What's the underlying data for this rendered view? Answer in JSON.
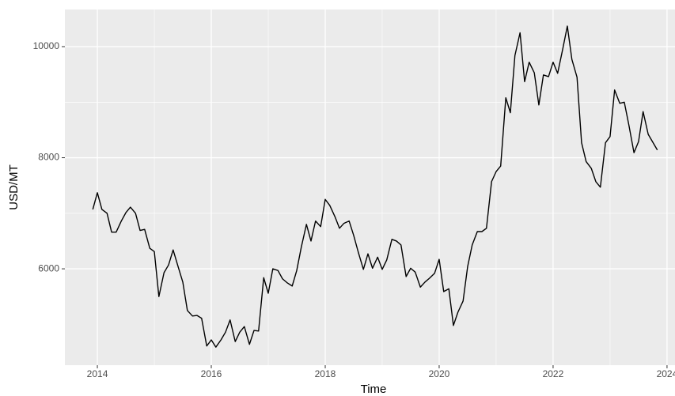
{
  "chart_data": {
    "type": "line",
    "x_label": "Time",
    "y_label": "USD/MT",
    "x": [
      2013.92,
      2014.0,
      2014.08,
      2014.17,
      2014.25,
      2014.33,
      2014.42,
      2014.5,
      2014.58,
      2014.67,
      2014.75,
      2014.83,
      2014.92,
      2015.0,
      2015.08,
      2015.17,
      2015.25,
      2015.33,
      2015.42,
      2015.5,
      2015.58,
      2015.67,
      2015.75,
      2015.83,
      2015.92,
      2016.0,
      2016.08,
      2016.17,
      2016.25,
      2016.33,
      2016.42,
      2016.5,
      2016.58,
      2016.67,
      2016.75,
      2016.83,
      2016.92,
      2017.0,
      2017.08,
      2017.17,
      2017.25,
      2017.33,
      2017.42,
      2017.5,
      2017.58,
      2017.67,
      2017.75,
      2017.83,
      2017.92,
      2018.0,
      2018.08,
      2018.17,
      2018.25,
      2018.33,
      2018.42,
      2018.5,
      2018.58,
      2018.67,
      2018.75,
      2018.83,
      2018.92,
      2019.0,
      2019.08,
      2019.17,
      2019.25,
      2019.33,
      2019.42,
      2019.5,
      2019.58,
      2019.67,
      2019.75,
      2019.83,
      2019.92,
      2020.0,
      2020.08,
      2020.17,
      2020.25,
      2020.33,
      2020.42,
      2020.5,
      2020.58,
      2020.67,
      2020.75,
      2020.83,
      2020.92,
      2021.0,
      2021.08,
      2021.17,
      2021.25,
      2021.33,
      2021.42,
      2021.5,
      2021.58,
      2021.67,
      2021.75,
      2021.83,
      2021.92,
      2022.0,
      2022.08,
      2022.17,
      2022.25,
      2022.33,
      2022.42,
      2022.5,
      2022.58,
      2022.67,
      2022.75,
      2022.83,
      2022.92,
      2023.0,
      2023.08,
      2023.17,
      2023.25,
      2023.33,
      2023.42,
      2023.5,
      2023.58,
      2023.67,
      2023.75,
      2023.83
    ],
    "series": [
      {
        "color": "#000000",
        "values": [
          7070,
          7370,
          7070,
          7000,
          6660,
          6660,
          6860,
          7010,
          7110,
          7000,
          6690,
          6710,
          6370,
          6310,
          5500,
          5930,
          6070,
          6340,
          6030,
          5760,
          5250,
          5150,
          5160,
          5110,
          4610,
          4720,
          4590,
          4720,
          4860,
          5080,
          4690,
          4860,
          4960,
          4640,
          4890,
          4880,
          5840,
          5560,
          6000,
          5970,
          5820,
          5750,
          5690,
          5970,
          6390,
          6800,
          6500,
          6860,
          6760,
          7250,
          7140,
          6940,
          6730,
          6820,
          6860,
          6600,
          6300,
          5990,
          6270,
          6010,
          6210,
          5990,
          6160,
          6530,
          6500,
          6430,
          5860,
          6010,
          5940,
          5670,
          5760,
          5830,
          5920,
          6170,
          5590,
          5640,
          4980,
          5220,
          5420,
          6040,
          6430,
          6670,
          6670,
          6730,
          7570,
          7750,
          7850,
          9080,
          8810,
          9840,
          10250,
          9370,
          9720,
          9530,
          8950,
          9490,
          9460,
          9720,
          9520,
          9960,
          10370,
          9770,
          9450,
          8270,
          7930,
          7810,
          7570,
          7470,
          8270,
          8380,
          9220,
          8980,
          9000,
          8590,
          8090,
          8290,
          8830,
          8420,
          8280,
          8140
        ]
      }
    ],
    "xlim": [
      2013.43,
      2024.14
    ],
    "ylim": [
      4265,
      10669
    ],
    "xticks": [
      2014,
      2016,
      2018,
      2020,
      2022,
      2024
    ],
    "yticks": [
      6000,
      8000,
      10000
    ],
    "grid": true
  }
}
